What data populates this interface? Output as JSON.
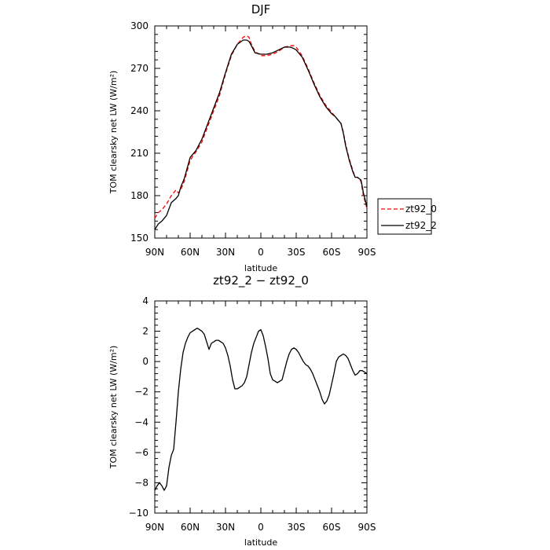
{
  "chart_data": [
    {
      "type": "line",
      "title": "DJF",
      "xlabel": "latitude",
      "ylabel": "TOM clearsky net LW (W/m²)",
      "xlim": [
        90,
        -90
      ],
      "ylim": [
        150,
        300
      ],
      "yticks": [
        150,
        180,
        210,
        240,
        270,
        300
      ],
      "yticklabels": [
        "150",
        "180",
        "210",
        "240",
        "270",
        "300"
      ],
      "xticks": [
        90,
        60,
        30,
        0,
        -30,
        -60,
        -90
      ],
      "xticklabels": [
        "90N",
        "60N",
        "30N",
        "0",
        "30S",
        "60S",
        "90S"
      ],
      "legend": {
        "placement": "right",
        "entries": [
          "zt92_0",
          "zt92_2"
        ]
      },
      "series": [
        {
          "name": "zt92_0",
          "color": "#ff0000",
          "dash": true,
          "x": [
            90,
            87,
            84,
            80,
            76,
            72,
            70,
            68,
            65,
            60,
            55,
            50,
            45,
            40,
            35,
            30,
            25,
            20,
            15,
            12,
            10,
            8,
            5,
            0,
            -5,
            -10,
            -15,
            -20,
            -25,
            -28,
            -30,
            -35,
            -40,
            -45,
            -50,
            -55,
            -60,
            -63,
            -65,
            -68,
            -70,
            -72,
            -75,
            -78,
            -80,
            -82,
            -85,
            -87,
            -90
          ],
          "values": [
            164,
            168,
            170,
            174,
            180,
            184,
            182,
            184,
            190,
            205,
            211,
            218,
            229,
            240,
            251,
            266,
            279,
            287,
            292,
            293,
            292,
            287,
            282,
            279,
            279,
            280,
            282,
            285,
            286,
            286,
            285,
            279,
            270,
            260,
            251,
            244,
            239,
            236,
            234,
            231,
            225,
            216,
            206,
            198,
            193,
            193,
            190,
            180,
            171
          ]
        },
        {
          "name": "zt92_2",
          "color": "#000000",
          "dash": false,
          "x": [
            90,
            87,
            84,
            80,
            76,
            72,
            70,
            68,
            65,
            60,
            55,
            50,
            45,
            40,
            35,
            30,
            25,
            20,
            15,
            12,
            10,
            8,
            5,
            0,
            -5,
            -10,
            -15,
            -20,
            -25,
            -28,
            -30,
            -35,
            -40,
            -45,
            -50,
            -55,
            -60,
            -63,
            -65,
            -68,
            -70,
            -72,
            -75,
            -78,
            -80,
            -82,
            -85,
            -87,
            -90
          ],
          "values": [
            156,
            160,
            162,
            166,
            175,
            178,
            180,
            186,
            192,
            207,
            212,
            220,
            231,
            242,
            253,
            267,
            280,
            287,
            290,
            290,
            289,
            286,
            281,
            280,
            280,
            281,
            283,
            285,
            285,
            284,
            283,
            278,
            269,
            259,
            250,
            243,
            238,
            236,
            234,
            231,
            224,
            215,
            205,
            197,
            193,
            193,
            191,
            182,
            172
          ]
        }
      ]
    },
    {
      "type": "line",
      "title": "zt92_2 − zt92_0",
      "xlabel": "latitude",
      "ylabel": "TOM clearsky net LW (W/m²)",
      "xlim": [
        90,
        -90
      ],
      "ylim": [
        -10,
        4
      ],
      "yticks": [
        -10,
        -8,
        -6,
        -4,
        -2,
        0,
        2,
        4
      ],
      "yticklabels": [
        "−10",
        "−8",
        "−6",
        "−4",
        "−2",
        "0",
        "2",
        "4"
      ],
      "xticks": [
        90,
        60,
        30,
        0,
        -30,
        -60,
        -90
      ],
      "xticklabels": [
        "90N",
        "60N",
        "30N",
        "0",
        "30S",
        "60S",
        "90S"
      ],
      "series": [
        {
          "color": "#000000",
          "dash": false,
          "x": [
            90,
            88,
            86,
            84,
            82,
            80,
            78,
            76,
            74,
            72,
            70,
            68,
            66,
            64,
            62,
            60,
            58,
            56,
            54,
            52,
            50,
            48,
            46,
            44,
            42,
            40,
            38,
            36,
            34,
            32,
            30,
            28,
            26,
            24,
            22,
            20,
            18,
            16,
            14,
            12,
            10,
            8,
            6,
            4,
            2,
            0,
            -2,
            -4,
            -6,
            -8,
            -10,
            -12,
            -14,
            -16,
            -18,
            -20,
            -22,
            -24,
            -26,
            -28,
            -30,
            -32,
            -34,
            -36,
            -38,
            -40,
            -42,
            -44,
            -46,
            -48,
            -50,
            -52,
            -54,
            -56,
            -58,
            -60,
            -62,
            -64,
            -66,
            -68,
            -70,
            -72,
            -74,
            -76,
            -78,
            -80,
            -82,
            -84,
            -86,
            -88,
            -90
          ],
          "values": [
            -8.5,
            -8.2,
            -8.0,
            -8.2,
            -8.5,
            -8.2,
            -7.0,
            -6.2,
            -5.8,
            -4.0,
            -2.0,
            -0.5,
            0.6,
            1.2,
            1.6,
            1.9,
            2.0,
            2.1,
            2.2,
            2.1,
            2.0,
            1.8,
            1.3,
            0.8,
            1.2,
            1.3,
            1.4,
            1.4,
            1.3,
            1.2,
            0.9,
            0.4,
            -0.3,
            -1.2,
            -1.8,
            -1.8,
            -1.7,
            -1.6,
            -1.4,
            -1.0,
            -0.2,
            0.6,
            1.2,
            1.6,
            2.0,
            2.1,
            1.7,
            1.0,
            0.2,
            -0.8,
            -1.2,
            -1.3,
            -1.4,
            -1.3,
            -1.2,
            -0.6,
            0.0,
            0.5,
            0.8,
            0.9,
            0.8,
            0.6,
            0.3,
            0.0,
            -0.2,
            -0.3,
            -0.5,
            -0.8,
            -1.2,
            -1.6,
            -2.0,
            -2.5,
            -2.8,
            -2.6,
            -2.2,
            -1.5,
            -0.8,
            0.0,
            0.3,
            0.4,
            0.5,
            0.4,
            0.2,
            -0.2,
            -0.6,
            -0.9,
            -0.8,
            -0.6,
            -0.6,
            -0.7,
            -0.8
          ]
        }
      ]
    }
  ]
}
